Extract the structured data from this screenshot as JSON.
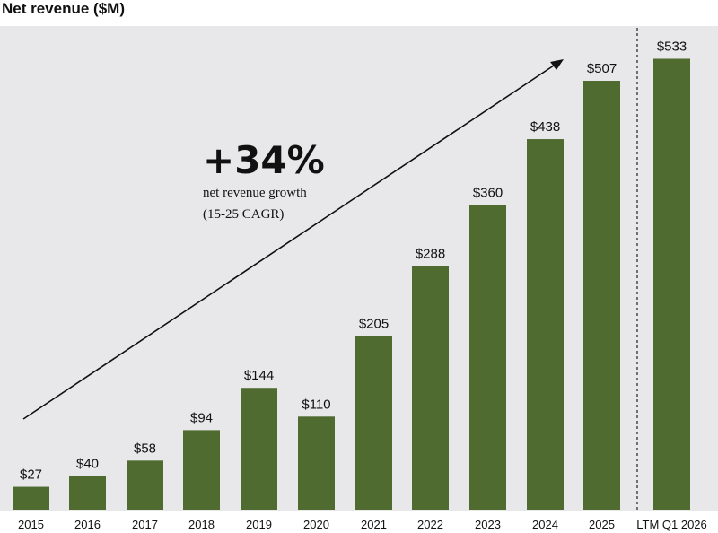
{
  "chart_data": {
    "type": "bar",
    "title": "Net revenue ($M)",
    "xlabel": "",
    "ylabel": "",
    "ylim": [
      0,
      560
    ],
    "grid": false,
    "categories": [
      "2015",
      "2016",
      "2017",
      "2018",
      "2019",
      "2020",
      "2021",
      "2022",
      "2023",
      "2024",
      "2025",
      "LTM Q1 2026"
    ],
    "values": [
      27,
      40,
      58,
      94,
      144,
      110,
      205,
      288,
      360,
      438,
      507,
      533
    ],
    "data_labels": [
      "$27",
      "$40",
      "$58",
      "$94",
      "$144",
      "$110",
      "$205",
      "$288",
      "$360",
      "$438",
      "$507",
      "$533"
    ],
    "annotation": {
      "headline": "+34%",
      "line1": "net revenue growth",
      "line2": "(15-25 CAGR)"
    },
    "colors": {
      "bar": "#4f6b30",
      "plot_background": "#e8e8ea",
      "text": "#111111"
    }
  }
}
